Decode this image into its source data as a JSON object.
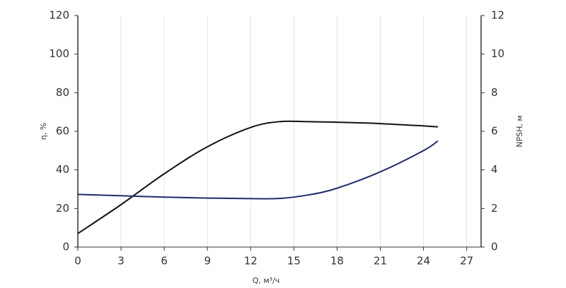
{
  "chart_data": {
    "type": "line",
    "x_label": "Q, м³/ч",
    "y_label": "η, %",
    "y2_label": "NPSH, м",
    "x": [
      0,
      3,
      6,
      9,
      12,
      14,
      16,
      18,
      21,
      24,
      25
    ],
    "series": [
      {
        "color": "#111111",
        "values": [
          7,
          22,
          38,
          52,
          62,
          65,
          65,
          64.7,
          64,
          62.8,
          62.3
        ]
      },
      {
        "color": "#1f2a6b",
        "axis": "y2",
        "values": [
          2.73,
          2.66,
          2.59,
          2.54,
          2.51,
          2.52,
          2.7,
          3.05,
          3.9,
          5.0,
          5.5
        ]
      }
    ],
    "xlim": [
      0,
      28
    ],
    "xticks": [
      0,
      3,
      6,
      9,
      12,
      15,
      18,
      21,
      24,
      27
    ],
    "ylim": [
      0,
      120
    ],
    "yticks": [
      0,
      20,
      40,
      60,
      80,
      100,
      120
    ],
    "y2lim": [
      0,
      12
    ],
    "y2ticks": [
      0,
      2,
      4,
      6,
      8,
      10,
      12
    ],
    "grid": "x"
  }
}
